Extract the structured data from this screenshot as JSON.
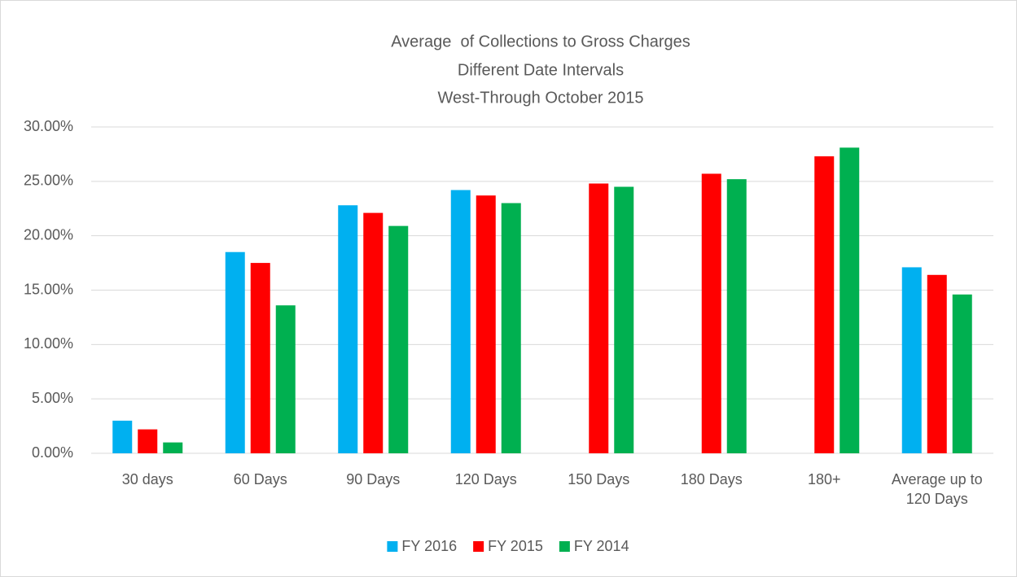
{
  "chart_data": {
    "type": "bar",
    "title": "Average  of Collections to Gross Charges",
    "subtitle": [
      "Different Date Intervals",
      "West-Through October 2015"
    ],
    "categories": [
      "30 days",
      "60 Days",
      "90 Days",
      "120 Days",
      "150 Days",
      "180 Days",
      "180+",
      "Average up to 120 Days"
    ],
    "series": [
      {
        "name": "FY 2016",
        "color": "#00b0f0",
        "values": [
          3.0,
          18.5,
          22.8,
          24.2,
          null,
          null,
          null,
          17.1
        ]
      },
      {
        "name": "FY 2015",
        "color": "#ff0000",
        "values": [
          2.2,
          17.5,
          22.1,
          23.7,
          24.8,
          25.7,
          27.3,
          16.4
        ]
      },
      {
        "name": "FY 2014",
        "color": "#00b050",
        "values": [
          1.0,
          13.6,
          20.9,
          23.0,
          24.5,
          25.2,
          28.1,
          14.6
        ]
      }
    ],
    "ylim": [
      0,
      30
    ],
    "yticks": [
      {
        "value": 0,
        "label": "0.00%"
      },
      {
        "value": 5,
        "label": "5.00%"
      },
      {
        "value": 10,
        "label": "10.00%"
      },
      {
        "value": 15,
        "label": "15.00%"
      },
      {
        "value": 20,
        "label": "20.00%"
      },
      {
        "value": 25,
        "label": "25.00%"
      },
      {
        "value": 30,
        "label": "30.00%"
      }
    ],
    "grid": true,
    "legend": "bottom"
  }
}
